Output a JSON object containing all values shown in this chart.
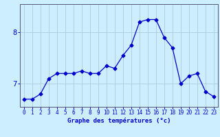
{
  "x": [
    0,
    1,
    2,
    3,
    4,
    5,
    6,
    7,
    8,
    9,
    10,
    11,
    12,
    13,
    14,
    15,
    16,
    17,
    18,
    19,
    20,
    21,
    22,
    23
  ],
  "y": [
    6.7,
    6.7,
    6.8,
    7.1,
    7.2,
    7.2,
    7.2,
    7.25,
    7.2,
    7.2,
    7.35,
    7.3,
    7.55,
    7.75,
    8.2,
    8.25,
    8.25,
    7.9,
    7.7,
    7.0,
    7.15,
    7.2,
    6.85,
    6.75
  ],
  "line_color": "#0000cc",
  "marker": "D",
  "marker_size": 2.5,
  "bg_color": "#cceeff",
  "plot_bg_color": "#cceeff",
  "grid_color": "#aaccdd",
  "xlabel": "Graphe des températures (°c)",
  "xlabel_color": "#0000cc",
  "tick_color": "#0000cc",
  "ylim": [
    6.55,
    8.55
  ],
  "yticks": [
    7,
    8
  ],
  "xlim": [
    -0.5,
    23.5
  ],
  "xticks": [
    0,
    1,
    2,
    3,
    4,
    5,
    6,
    7,
    8,
    9,
    10,
    11,
    12,
    13,
    14,
    15,
    16,
    17,
    18,
    19,
    20,
    21,
    22,
    23
  ],
  "xtick_labels": [
    "0",
    "1",
    "2",
    "3",
    "4",
    "5",
    "6",
    "7",
    "8",
    "9",
    "10",
    "11",
    "12",
    "13",
    "14",
    "15",
    "16",
    "17",
    "18",
    "19",
    "20",
    "21",
    "22",
    "23"
  ],
  "spine_color": "#555577"
}
